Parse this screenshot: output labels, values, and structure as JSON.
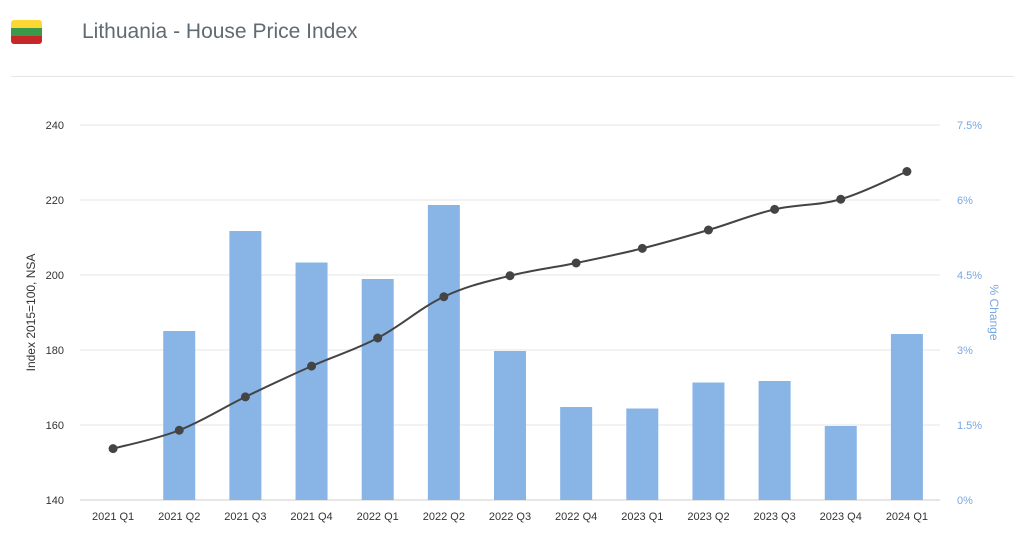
{
  "header": {
    "title": "Lithuania - House Price Index",
    "flag_colors": [
      "#fdd835",
      "#3a9a4a",
      "#c62828"
    ]
  },
  "chart_data": {
    "type": "bar+line",
    "categories": [
      "2021 Q1",
      "2021 Q2",
      "2021 Q3",
      "2021 Q4",
      "2022 Q1",
      "2022 Q2",
      "2022 Q3",
      "2022 Q4",
      "2023 Q1",
      "2023 Q2",
      "2023 Q3",
      "2023 Q4",
      "2024 Q1"
    ],
    "series": [
      {
        "name": "% Change",
        "kind": "bar",
        "axis": "right",
        "color": "#89b4e6",
        "values": [
          null,
          3.38,
          5.38,
          4.75,
          4.42,
          5.9,
          2.98,
          1.86,
          1.83,
          2.35,
          2.38,
          1.48,
          3.32
        ]
      },
      {
        "name": "Index 2015=100, NSA",
        "kind": "line",
        "axis": "left",
        "color": "#444444",
        "values": [
          153.7,
          158.6,
          167.5,
          175.7,
          183.2,
          194.2,
          199.8,
          203.2,
          207.1,
          212.0,
          217.5,
          220.2,
          227.6
        ]
      }
    ],
    "y_left": {
      "label": "Index 2015=100, NSA",
      "range": [
        140,
        240
      ],
      "ticks": [
        "140",
        "160",
        "180",
        "200",
        "220",
        "240"
      ],
      "tick_values": [
        140,
        160,
        180,
        200,
        220,
        240
      ]
    },
    "y_right": {
      "label": "% Change",
      "range": [
        0,
        7.5
      ],
      "ticks": [
        "0%",
        "1.5%",
        "3%",
        "4.5%",
        "6%",
        "7.5%"
      ],
      "tick_values": [
        0,
        1.5,
        3,
        4.5,
        6,
        7.5
      ],
      "color": "#7aa7e0"
    },
    "grid": true
  }
}
